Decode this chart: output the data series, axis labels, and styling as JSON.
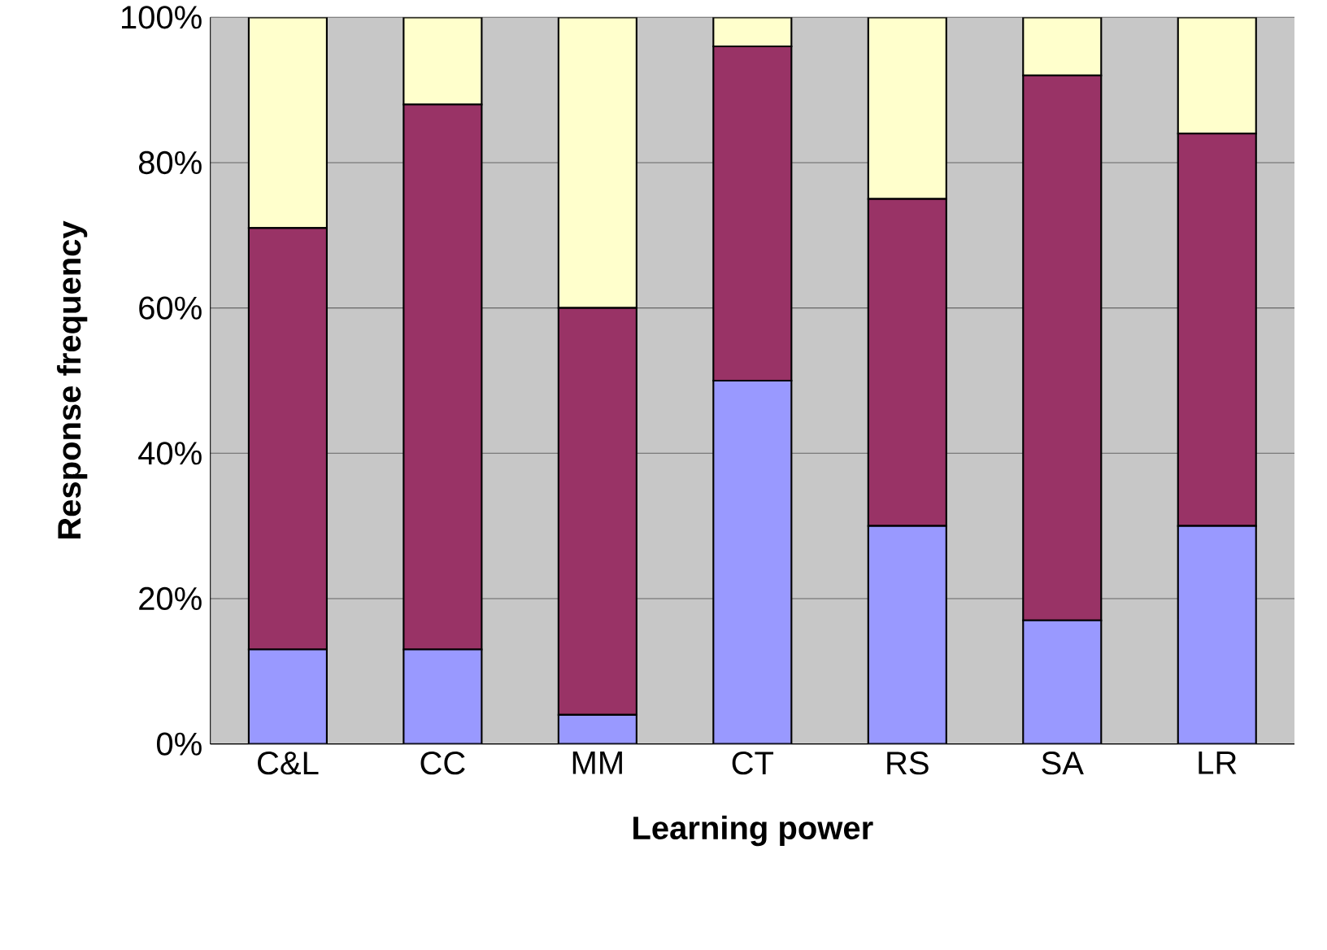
{
  "chart_data": {
    "type": "bar",
    "stacked": true,
    "xlabel": "Learning power",
    "ylabel": "Response frequency",
    "categories": [
      "C&L",
      "CC",
      "MM",
      "CT",
      "RS",
      "SA",
      "LR"
    ],
    "series": [
      {
        "color": "#9999ff",
        "values": [
          13,
          13,
          4,
          50,
          30,
          17,
          30
        ]
      },
      {
        "color": "#993366",
        "values": [
          58,
          75,
          56,
          46,
          45,
          75,
          54
        ]
      },
      {
        "color": "#ffffcc",
        "values": [
          29,
          12,
          40,
          4,
          25,
          8,
          16
        ]
      }
    ],
    "ylim": [
      0,
      100
    ],
    "yticks": [
      {
        "value": 0,
        "label": "0%"
      },
      {
        "value": 20,
        "label": "20%"
      },
      {
        "value": 40,
        "label": "40%"
      },
      {
        "value": 60,
        "label": "60%"
      },
      {
        "value": 80,
        "label": "80%"
      },
      {
        "value": 100,
        "label": "100%"
      }
    ],
    "grid": "y"
  }
}
